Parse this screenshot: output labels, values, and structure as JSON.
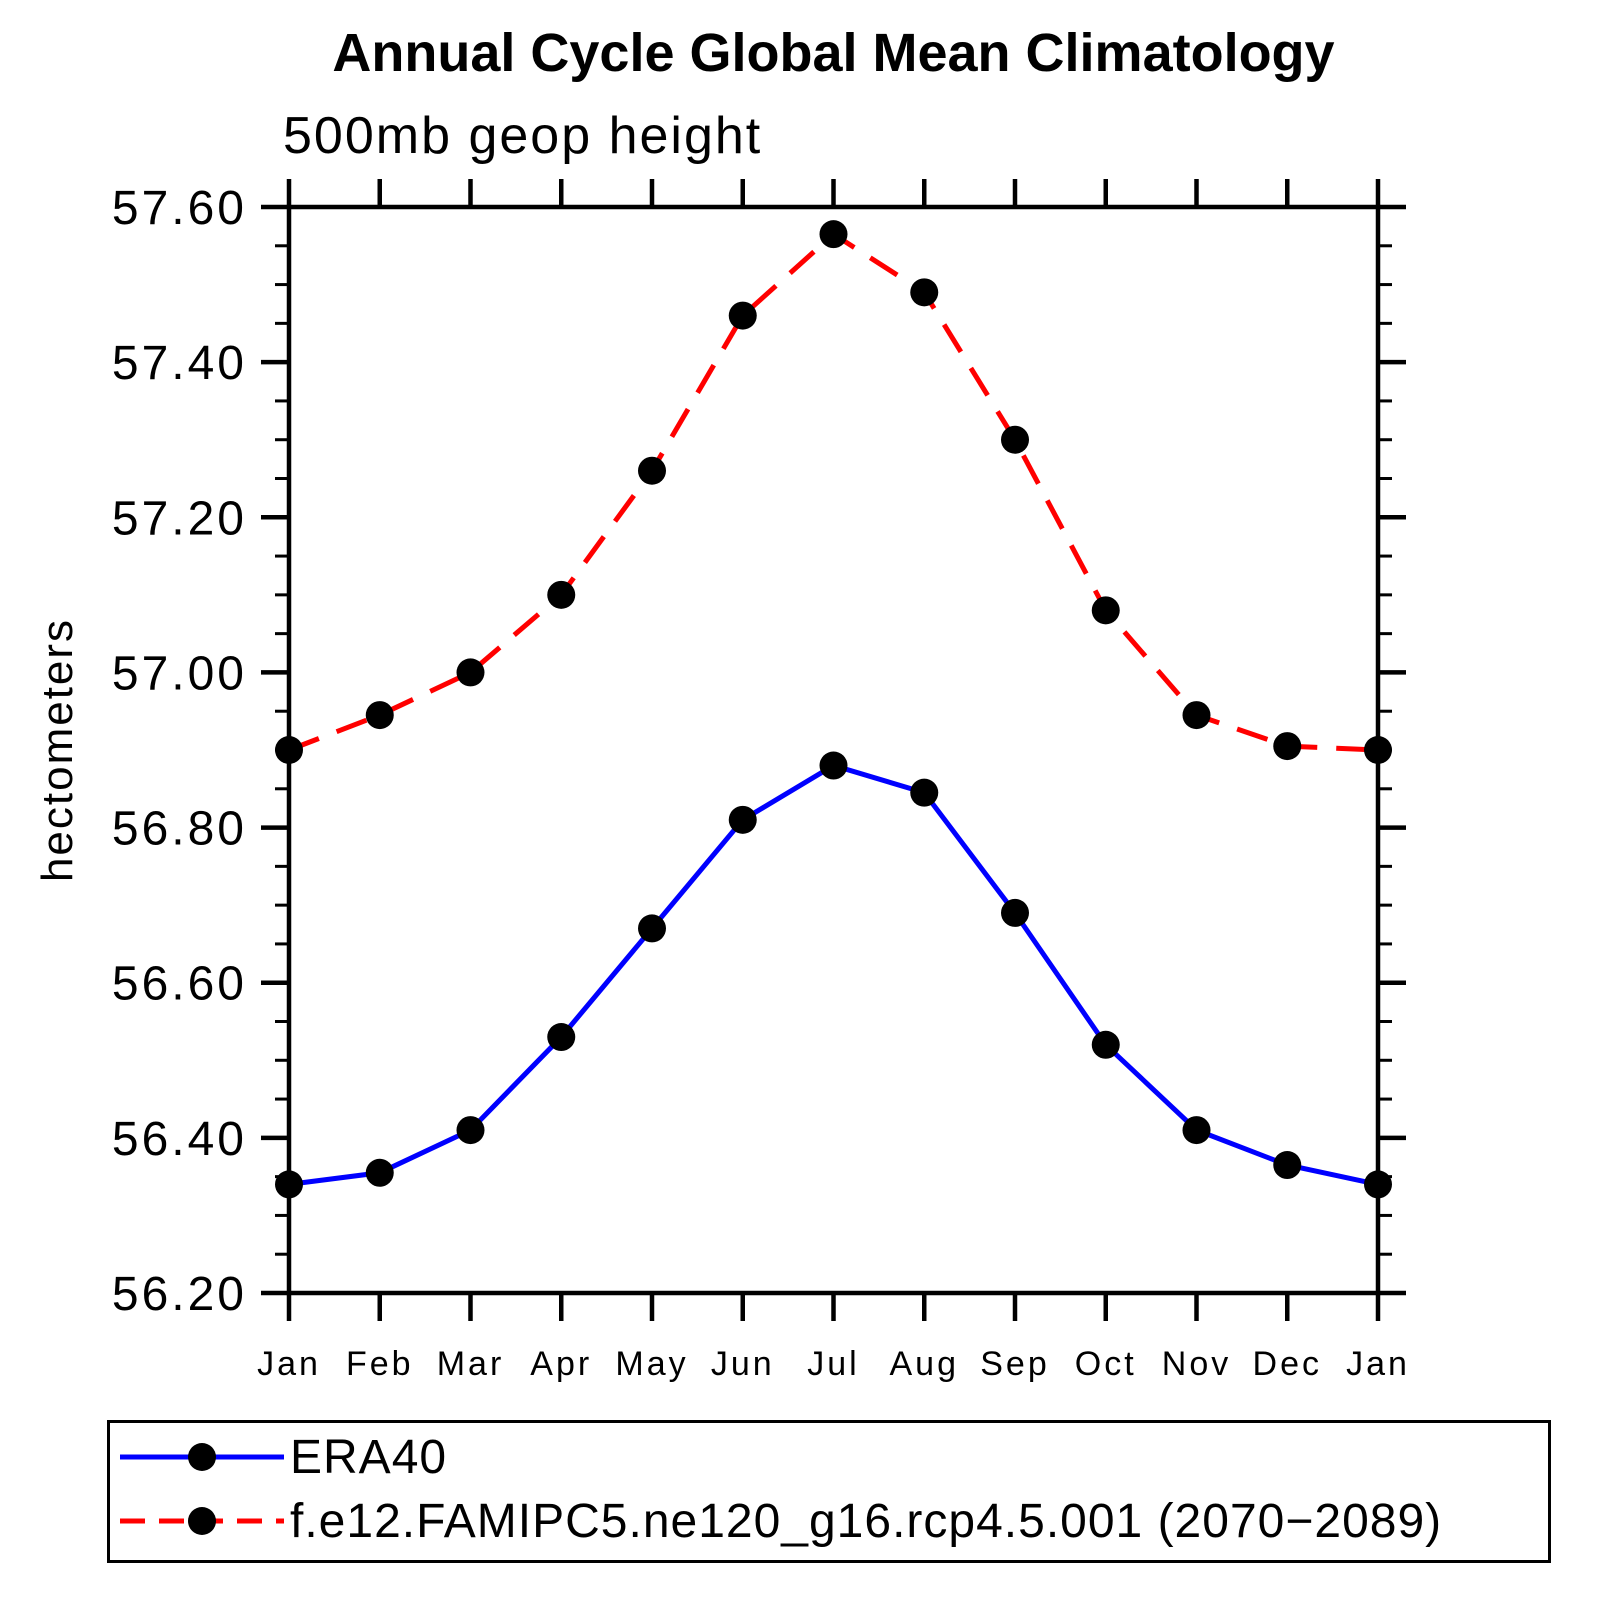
{
  "chart_data": {
    "type": "line",
    "title": "Annual Cycle Global Mean Climatology",
    "subtitle": "500mb geop height",
    "ylabel": "hectometers",
    "categories": [
      "Jan",
      "Feb",
      "Mar",
      "Apr",
      "May",
      "Jun",
      "Jul",
      "Aug",
      "Sep",
      "Oct",
      "Nov",
      "Dec",
      "Jan"
    ],
    "ylim": [
      56.2,
      57.6
    ],
    "ytick_major": 0.2,
    "ytick_minor": 0.05,
    "ytick_format_decimals": 2,
    "grid": "off",
    "legend_position": "bottom",
    "axis_color": "#000000",
    "marker_color": "#000000",
    "series": [
      {
        "name": "ERA40",
        "color": "#0000ff",
        "style": "solid",
        "values": [
          56.34,
          56.355,
          56.41,
          56.53,
          56.67,
          56.81,
          56.88,
          56.845,
          56.69,
          56.52,
          56.41,
          56.365,
          56.34
        ]
      },
      {
        "name": "f.e12.FAMIPC5.ne120_g16.rcp4.5.001 (2070−2089)",
        "color": "#ff0000",
        "style": "dashed",
        "values": [
          56.9,
          56.945,
          57.0,
          57.1,
          57.26,
          57.46,
          57.565,
          57.49,
          57.3,
          57.08,
          56.945,
          56.905,
          56.9
        ]
      }
    ]
  }
}
